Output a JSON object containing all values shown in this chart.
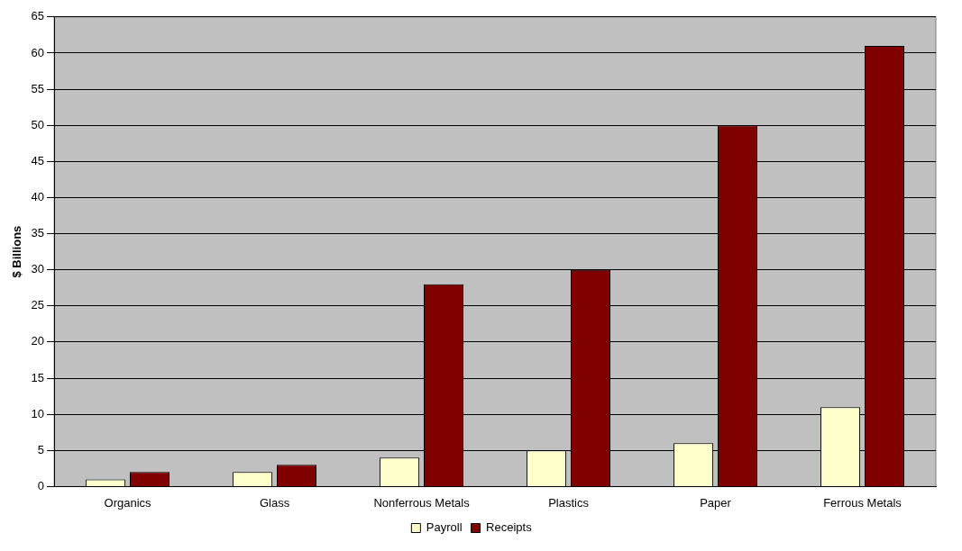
{
  "chart_data": {
    "type": "bar",
    "ylabel": "$ Billions",
    "categories": [
      "Organics",
      "Glass",
      "Nonferrous Metals",
      "Plastics",
      "Paper",
      "Ferrous Metals"
    ],
    "series": [
      {
        "name": "Payroll",
        "color": "#ffffcc",
        "values": [
          1,
          2,
          4,
          5,
          6,
          11
        ]
      },
      {
        "name": "Receipts",
        "color": "#800000",
        "values": [
          2,
          3,
          28,
          30,
          50,
          61
        ]
      }
    ],
    "ylim": [
      0,
      65
    ],
    "yticks": [
      0,
      5,
      10,
      15,
      20,
      25,
      30,
      35,
      40,
      45,
      50,
      55,
      60,
      65
    ],
    "grid": "y",
    "legend": "bottom"
  }
}
